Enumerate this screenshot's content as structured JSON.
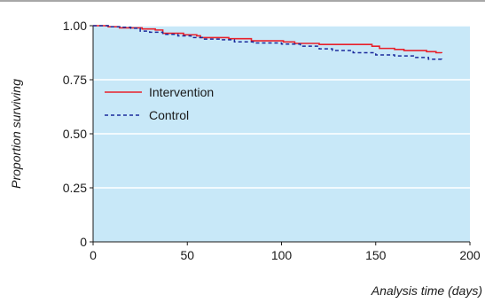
{
  "chart_data": {
    "type": "line",
    "title": "",
    "xlabel": "Analysis time (days)",
    "ylabel": "Proportion surviving",
    "xlim": [
      0,
      200
    ],
    "ylim": [
      0,
      1
    ],
    "x_ticks": [
      0,
      50,
      100,
      150,
      200
    ],
    "x_tick_labels": [
      "0",
      "50",
      "100",
      "150",
      "200"
    ],
    "y_ticks": [
      0,
      0.25,
      0.5,
      0.75,
      1.0
    ],
    "y_tick_labels": [
      "0",
      "0.25",
      "0.50",
      "0.75",
      "1.00"
    ],
    "grid": "horizontal",
    "legend_position": "middle-left",
    "colors": {
      "plot_background": "#c8e8f8",
      "grid": "#ffffff",
      "intervention": "#e8202a",
      "control": "#1b2a9c",
      "top_rule": "#8a8a8a"
    },
    "series": [
      {
        "name": "Intervention",
        "style": "solid",
        "x": [
          0,
          8,
          14,
          22,
          26,
          33,
          37,
          48,
          55,
          57,
          69,
          72,
          82,
          84,
          99,
          101,
          107,
          120,
          130,
          141,
          148,
          152,
          160,
          165,
          172,
          177,
          182,
          185
        ],
        "y": [
          1.0,
          0.995,
          0.99,
          0.99,
          0.985,
          0.98,
          0.965,
          0.958,
          0.953,
          0.945,
          0.945,
          0.94,
          0.94,
          0.93,
          0.93,
          0.925,
          0.918,
          0.913,
          0.913,
          0.913,
          0.905,
          0.895,
          0.89,
          0.885,
          0.885,
          0.88,
          0.875,
          0.873
        ]
      },
      {
        "name": "Control",
        "style": "dashed",
        "x": [
          0,
          8,
          15,
          20,
          25,
          30,
          37,
          45,
          52,
          58,
          68,
          75,
          85,
          100,
          110,
          120,
          127,
          138,
          145,
          150,
          160,
          170,
          178,
          185
        ],
        "y": [
          1.0,
          0.995,
          0.993,
          0.988,
          0.975,
          0.97,
          0.96,
          0.953,
          0.945,
          0.938,
          0.935,
          0.925,
          0.92,
          0.915,
          0.905,
          0.893,
          0.885,
          0.875,
          0.875,
          0.865,
          0.86,
          0.853,
          0.845,
          0.84
        ]
      }
    ]
  }
}
